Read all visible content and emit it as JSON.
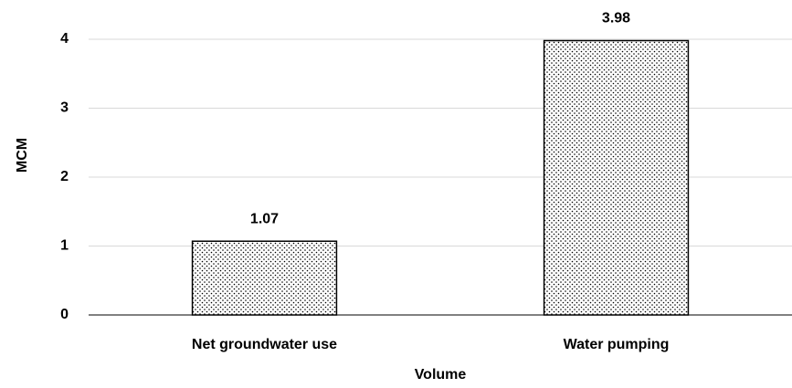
{
  "chart_data": {
    "type": "bar",
    "categories": [
      "Net groundwater use",
      "Water pumping"
    ],
    "values": [
      1.07,
      3.98
    ],
    "xlabel": "Volume",
    "ylabel": "MCM",
    "ylim": [
      0,
      4
    ],
    "yticks": [
      0,
      1,
      2,
      3,
      4
    ],
    "grid": true,
    "color": "#000000"
  }
}
